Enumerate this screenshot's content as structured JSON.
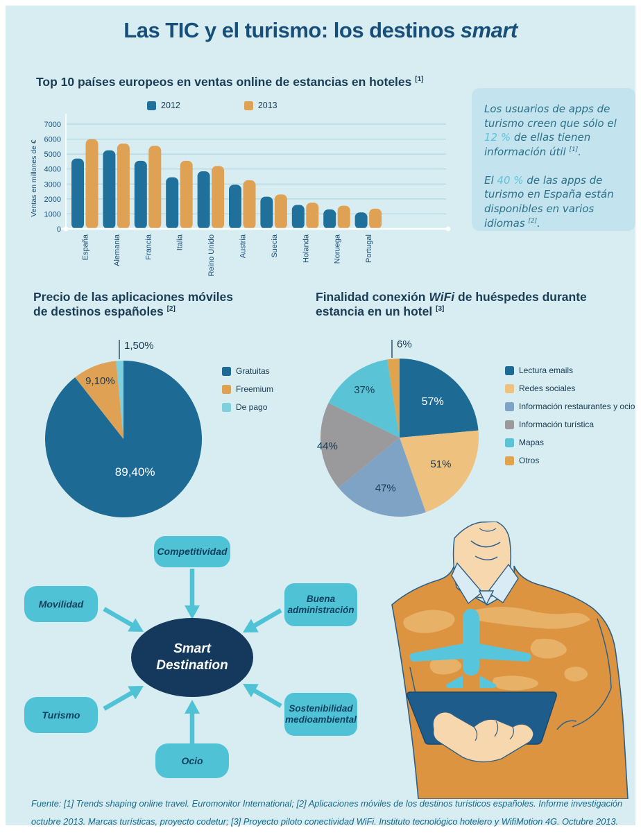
{
  "page": {
    "title_main": "Las TIC y el turismo: los destinos",
    "title_italic": "smart",
    "background_color": "#d7edf2",
    "accent_navy": "#174f7a",
    "accent_teal": "#4fc3d5"
  },
  "chart_data": [
    {
      "type": "bar",
      "title": "Top 10 países europeos en ventas online de estancias en hoteles",
      "title_sup": "[1]",
      "ylabel": "Ventas en millones de €",
      "ylim": [
        0,
        7000
      ],
      "ytick_step": 1000,
      "grid": true,
      "legend_position": "top",
      "categories": [
        "España",
        "Alemania",
        "Francia",
        "Italia",
        "Reino Unido",
        "Austria",
        "Suecia",
        "Holanda",
        "Noruega",
        "Portugal"
      ],
      "series": [
        {
          "name": "2012",
          "color": "#20709c",
          "values": [
            4700,
            5250,
            4550,
            3450,
            3850,
            2950,
            2150,
            1600,
            1300,
            1100
          ]
        },
        {
          "name": "2013",
          "color": "#dfa254",
          "values": [
            6000,
            5700,
            5550,
            4550,
            4200,
            3250,
            2300,
            1750,
            1550,
            1350
          ]
        }
      ]
    },
    {
      "type": "pie",
      "title_line1": "Precio de las aplicaciones móviles",
      "title_line2": "de destinos españoles",
      "title_sup": "[2]",
      "labels": [
        "Gratuitas",
        "Freemium",
        "De pago"
      ],
      "values": [
        89.4,
        9.1,
        1.5
      ],
      "display_values": [
        "89,40%",
        "9,10%",
        "1,50%"
      ],
      "colors": [
        "#1d6a94",
        "#dfa254",
        "#7ed0dd"
      ],
      "legend_position": "right"
    },
    {
      "type": "pie",
      "title_pre": "Finalidad conexión",
      "title_italic": "WiFi",
      "title_post": "de huéspedes durante",
      "title_line2": "estancia en un hotel",
      "title_sup": "[3]",
      "labels": [
        "Lectura emails",
        "Redes sociales",
        "Información restaurantes y ocio",
        "Información turística",
        "Mapas",
        "Otros"
      ],
      "values": [
        57,
        51,
        47,
        44,
        37,
        6
      ],
      "display_values": [
        "57%",
        "51%",
        "47%",
        "44%",
        "37%",
        "6%"
      ],
      "colors": [
        "#1d6a94",
        "#eec17f",
        "#7fa3c5",
        "#9a999b",
        "#5ac4d6",
        "#e0a34e"
      ],
      "legend_position": "right"
    }
  ],
  "side_note": {
    "p1_pre": "Los usuarios de apps de turismo creen que sólo el ",
    "p1_highlight": "12 %",
    "p1_mid": " de ellas tienen información útil ",
    "p1_sup": "[1]",
    "p1_end": ".",
    "p2_pre": "El ",
    "p2_highlight": "40 %",
    "p2_mid": " de las apps de turismo en España están disponibles en varios idiomas ",
    "p2_sup": "[2]",
    "p2_end": "."
  },
  "diagram": {
    "center": "Smart Destination",
    "nodes": {
      "competitividad": "Competitividad",
      "movilidad": "Movilidad",
      "buena_administracion": "Buena administración",
      "turismo": "Turismo",
      "sostenibilidad": "Sostenibilidad medioambiental",
      "ocio": "Ocio"
    }
  },
  "footer": {
    "source": "Fuente: [1] Trends shaping online travel. Euromonitor International; [2] Aplicaciones móviles de los destinos turísticos españoles. Informe investigación octubre 2013. Marcas turísticas, proyecto codetur; [3] Proyecto piloto conectividad WiFi. Instituto tecnológico hotelero y WifiMotion 4G. Octubre 2013."
  }
}
